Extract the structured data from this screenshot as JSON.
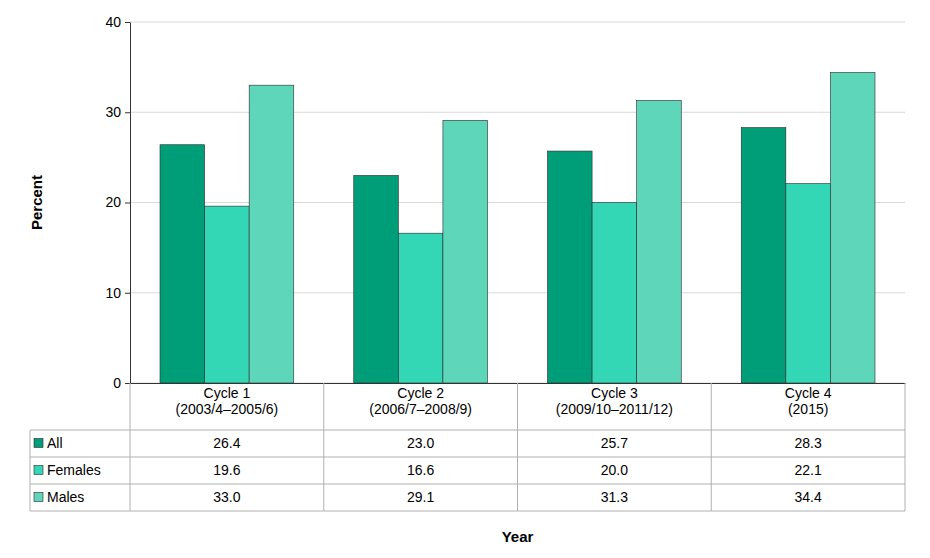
{
  "chart_data": {
    "type": "bar",
    "x_label": "Year",
    "y_label": "Percent",
    "categories": [
      "Cycle 1\n(2003/4–2005/6)",
      "Cycle 2\n(2006/7–2008/9)",
      "Cycle 3\n(2009/10–2011/12)",
      "Cycle 4\n(2015)"
    ],
    "series": [
      {
        "name": "All",
        "color": "#009e78",
        "values": [
          26.4,
          23.0,
          25.7,
          28.3
        ],
        "value_labels": [
          "26.4",
          "23.0",
          "25.7",
          "28.3"
        ]
      },
      {
        "name": "Females",
        "color": "#33d6b5",
        "values": [
          19.6,
          16.6,
          20.0,
          22.1
        ],
        "value_labels": [
          "19.6",
          "16.6",
          "20.0",
          "22.1"
        ]
      },
      {
        "name": "Males",
        "color": "#5dd6ba",
        "values": [
          33.0,
          29.1,
          31.3,
          34.4
        ],
        "value_labels": [
          "33.0",
          "29.1",
          "31.3",
          "34.4"
        ]
      }
    ],
    "ylim": [
      0,
      40
    ],
    "yticks": [
      0,
      10,
      20,
      30,
      40
    ],
    "grid": true
  }
}
